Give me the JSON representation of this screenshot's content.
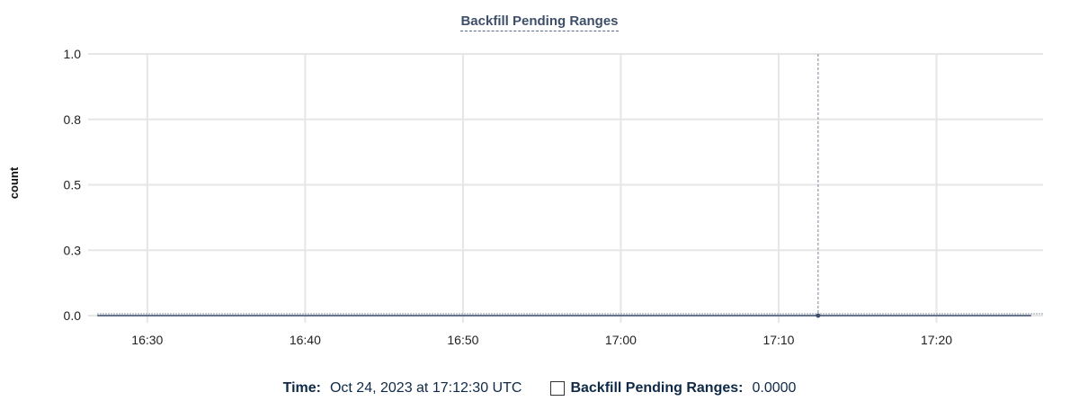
{
  "chart_data": {
    "type": "line",
    "title": "Backfill Pending Ranges",
    "xlabel": "",
    "ylabel": "count",
    "ylim": [
      0,
      1
    ],
    "yticks": [
      0,
      0.25,
      0.5,
      0.75,
      1.0
    ],
    "ytick_labels": [
      "0.0",
      "0.3",
      "0.5",
      "0.8",
      "1.0"
    ],
    "xlim": [
      "16:26:15",
      "17:26:45"
    ],
    "xtick_labels": [
      "16:30",
      "16:40",
      "16:50",
      "17:00",
      "17:10",
      "17:20"
    ],
    "grid": true,
    "series": [
      {
        "name": "Backfill Pending Ranges",
        "color": "#3e4f6a",
        "x": [
          "16:26:50",
          "17:26:00"
        ],
        "y": [
          0,
          0
        ]
      }
    ],
    "crosshair": {
      "time": "17:12:30",
      "value": 0
    }
  },
  "legend": {
    "time_label": "Time:",
    "time_value": "Oct 24, 2023 at 17:12:30 UTC",
    "series_label": "Backfill Pending Ranges:",
    "series_value": "0.0000"
  }
}
